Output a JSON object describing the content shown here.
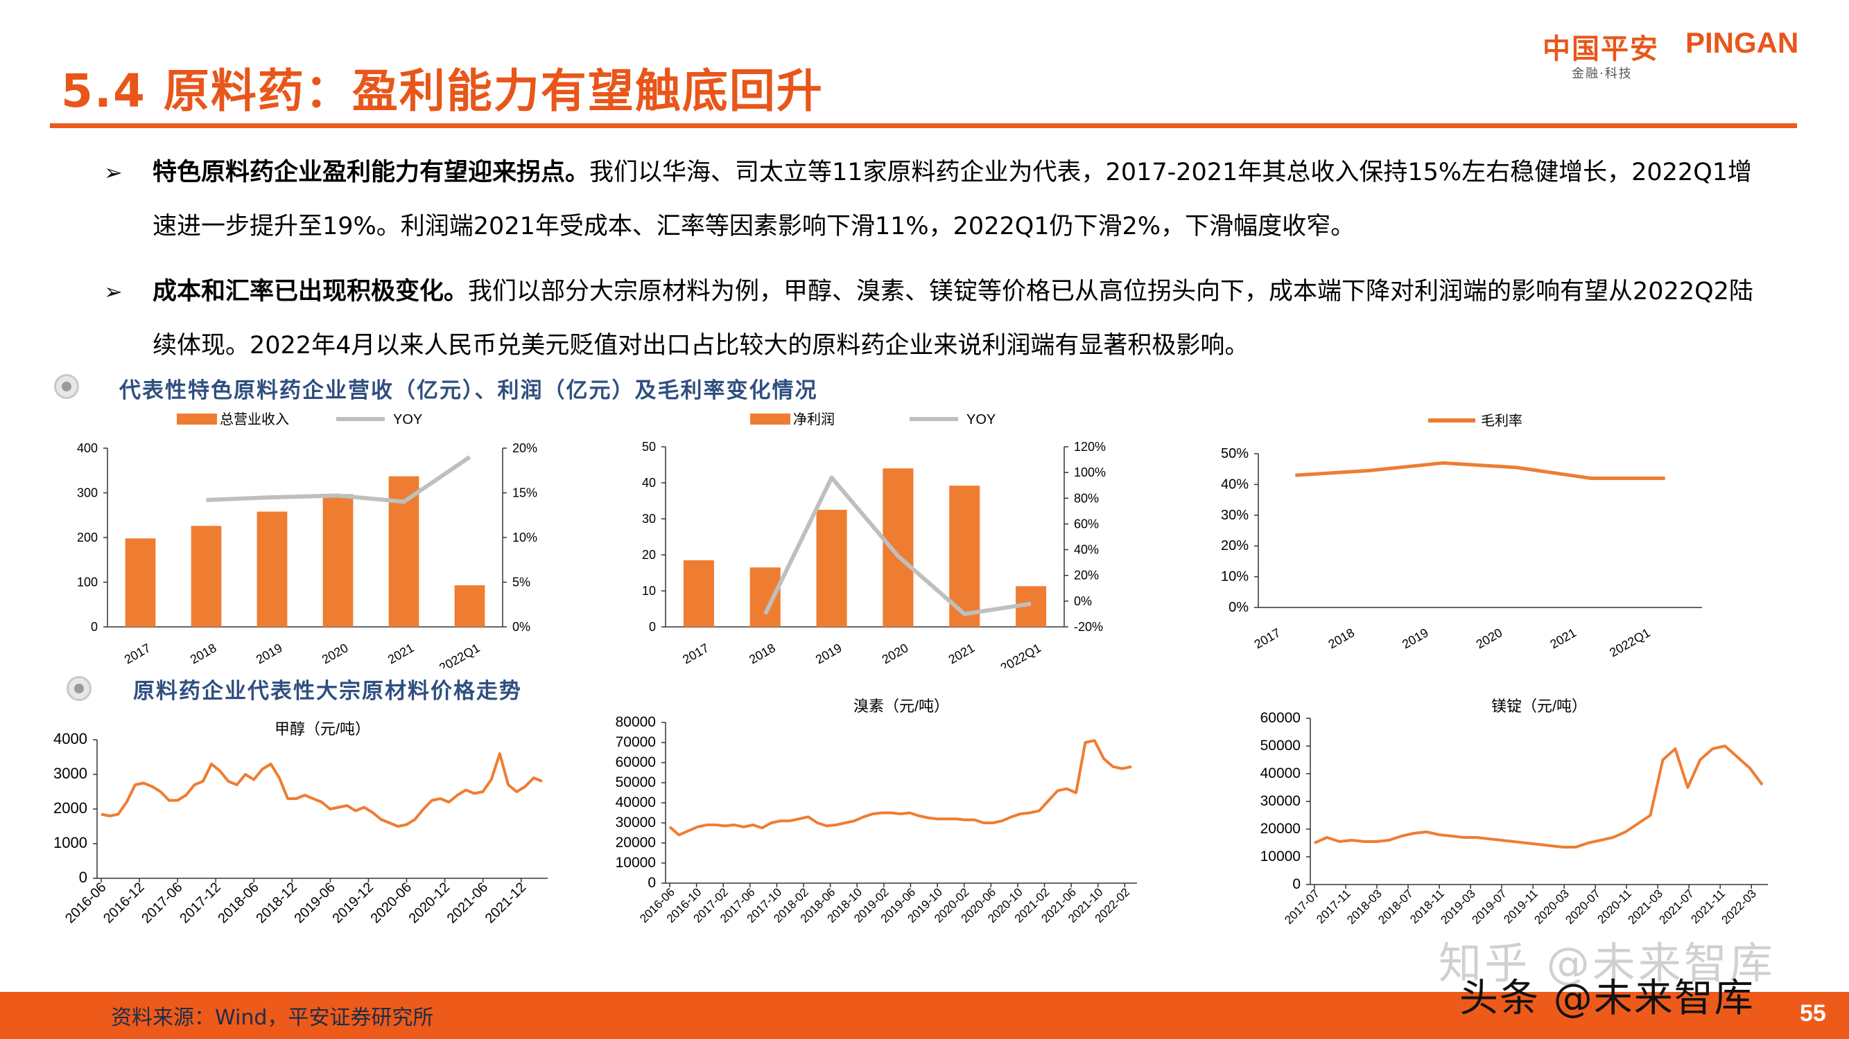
{
  "header": {
    "title": "5.4 原料药：盈利能力有望触底回升",
    "logo_cn": "中国平安",
    "logo_en": "PINGAN",
    "logo_sub": "金融·科技"
  },
  "bullets": [
    {
      "mark": "➢",
      "head": "特色原料药企业盈利能力有望迎来拐点。",
      "body": "我们以华海、司太立等11家原料药企业为代表，2017-2021年其总收入保持15%左右稳健增长，2022Q1增速进一步提升至19%。利润端2021年受成本、汇率等因素影响下滑11%，2022Q1仍下滑2%，下滑幅度收窄。"
    },
    {
      "mark": "➢",
      "head": "成本和汇率已出现积极变化。",
      "body": "我们以部分大宗原材料为例，甲醇、溴素、镁锭等价格已从高位拐头向下，成本端下降对利润端的影响有望从2022Q2陆续体现。2022年4月以来人民币兑美元贬值对出口占比较大的原料药企业来说利润端有显著积极影响。"
    }
  ],
  "sections": [
    "代表性特色原料药企业营收（亿元）、利润（亿元）及毛利率变化情况",
    "原料药企业代表性大宗原材料价格走势"
  ],
  "colors": {
    "accent": "#ee7d31",
    "gray": "#bfbfbf",
    "title": "#e8561a",
    "section": "#2f4f7f"
  },
  "chart_data": [
    {
      "type": "bar",
      "categories": [
        "2017",
        "2018",
        "2019",
        "2020",
        "2021",
        "2022Q1"
      ],
      "series": [
        {
          "name": "总营业收入",
          "type": "bar",
          "values": [
            198,
            226,
            258,
            297,
            337,
            93
          ]
        },
        {
          "name": "YOY",
          "type": "line",
          "axis": "right",
          "values": [
            null,
            14.2,
            14.5,
            14.7,
            14.0,
            19.0
          ]
        }
      ],
      "ylim": [
        0,
        400
      ],
      "yticks": [
        "0",
        "100",
        "200",
        "300",
        "400"
      ],
      "y2lim": [
        0,
        20
      ],
      "y2ticks": [
        "0%",
        "5%",
        "10%",
        "15%",
        "20%"
      ]
    },
    {
      "type": "bar",
      "categories": [
        "2017",
        "2018",
        "2019",
        "2020",
        "2021",
        "2022Q1"
      ],
      "series": [
        {
          "name": "净利润",
          "type": "bar",
          "values": [
            18.5,
            16.5,
            32.5,
            44,
            39.2,
            11.3
          ]
        },
        {
          "name": "YOY",
          "type": "line",
          "axis": "right",
          "values": [
            null,
            -10,
            96,
            35,
            -10,
            -2
          ]
        }
      ],
      "ylim": [
        0,
        50
      ],
      "yticks": [
        "0",
        "10",
        "20",
        "30",
        "40",
        "50"
      ],
      "y2lim": [
        -20,
        120
      ],
      "y2ticks": [
        "-20%",
        "0%",
        "20%",
        "40%",
        "60%",
        "80%",
        "100%",
        "120%"
      ]
    },
    {
      "type": "line",
      "categories": [
        "2017",
        "2018",
        "2019",
        "2020",
        "2021",
        "2022Q1"
      ],
      "series": [
        {
          "name": "毛利率",
          "values": [
            43,
            44.5,
            47,
            45.5,
            42,
            42
          ]
        }
      ],
      "ylim": [
        0,
        50
      ],
      "yticks": [
        "0%",
        "10%",
        "20%",
        "30%",
        "40%",
        "50%"
      ]
    },
    {
      "type": "line",
      "title": "甲醇（元/吨）",
      "x_ticks": [
        "2016-06",
        "2016-12",
        "2017-06",
        "2017-12",
        "2018-06",
        "2018-12",
        "2019-06",
        "2019-12",
        "2020-06",
        "2020-12",
        "2021-06",
        "2021-12"
      ],
      "values": [
        1850,
        1800,
        1850,
        2200,
        2700,
        2750,
        2650,
        2500,
        2250,
        2250,
        2400,
        2700,
        2800,
        3300,
        3100,
        2800,
        2700,
        3000,
        2850,
        3150,
        3300,
        2900,
        2300,
        2300,
        2400,
        2300,
        2200,
        2000,
        2050,
        2100,
        1950,
        2050,
        1900,
        1700,
        1600,
        1500,
        1550,
        1700,
        2000,
        2250,
        2300,
        2200,
        2400,
        2550,
        2450,
        2500,
        2850,
        3600,
        2700,
        2500,
        2650,
        2900,
        2800
      ],
      "ylim": [
        0,
        4000
      ],
      "yticks": [
        "0",
        "1000",
        "2000",
        "3000",
        "4000"
      ]
    },
    {
      "type": "line",
      "title": "溴素（元/吨）",
      "x_ticks": [
        "2016-06",
        "2016-10",
        "2017-02",
        "2017-06",
        "2017-10",
        "2018-02",
        "2018-06",
        "2018-10",
        "2019-02",
        "2019-06",
        "2019-10",
        "2020-02",
        "2020-06",
        "2020-10",
        "2021-02",
        "2021-06",
        "2021-10",
        "2022-02"
      ],
      "values": [
        28000,
        24000,
        26000,
        28000,
        29000,
        29000,
        28500,
        29000,
        28000,
        29000,
        27500,
        30000,
        31000,
        31000,
        32000,
        33000,
        30000,
        28500,
        29000,
        30000,
        31000,
        33000,
        34500,
        35000,
        35000,
        34500,
        35000,
        33500,
        32500,
        32000,
        32000,
        32000,
        31500,
        31500,
        30000,
        30000,
        31000,
        33000,
        34500,
        35000,
        36000,
        41000,
        46000,
        47000,
        45000,
        70000,
        71000,
        62000,
        58000,
        57000,
        58000
      ],
      "ylim": [
        0,
        80000
      ],
      "yticks": [
        "0",
        "10000",
        "20000",
        "30000",
        "40000",
        "50000",
        "60000",
        "70000",
        "80000"
      ]
    },
    {
      "type": "line",
      "title": "镁锭（元/吨）",
      "x_ticks": [
        "2017-07",
        "2017-11",
        "2018-03",
        "2018-07",
        "2018-11",
        "2019-03",
        "2019-07",
        "2019-11",
        "2020-03",
        "2020-07",
        "2020-11",
        "2021-03",
        "2021-07",
        "2021-11",
        "2022-03"
      ],
      "values": [
        15000,
        17000,
        15500,
        16000,
        15500,
        15500,
        16000,
        17500,
        18500,
        19000,
        18000,
        17500,
        17000,
        17000,
        16500,
        16000,
        15500,
        15000,
        14500,
        14000,
        13500,
        13500,
        15000,
        16000,
        17000,
        19000,
        22000,
        25000,
        45000,
        49000,
        35000,
        45000,
        49000,
        50000,
        46000,
        42000,
        36000
      ],
      "ylim": [
        0,
        60000
      ],
      "yticks": [
        "0",
        "10000",
        "20000",
        "30000",
        "40000",
        "50000",
        "60000"
      ]
    }
  ],
  "footer": {
    "source": "资料来源：Wind，平安证券研究所",
    "page_number": "55",
    "watermark": "知乎 @未来智库",
    "watermark2": "头条 @未来智库"
  }
}
